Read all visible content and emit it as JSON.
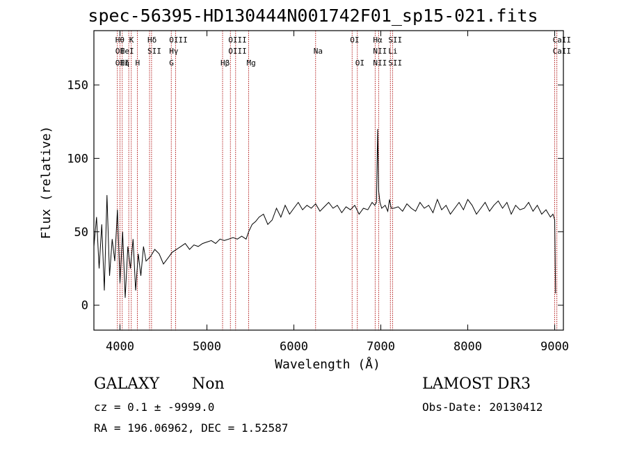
{
  "title": "spec-56395-HD130444N001742F01_sp15-021.fits",
  "info": {
    "galaxy_label": "GALAXY",
    "galaxy_value": "Non",
    "survey": "LAMOST DR3",
    "cz": "cz = 0.1 ± -9999.0",
    "obs_date": "Obs-Date: 20130412",
    "radec": "RA = 196.06962, DEC =    1.52587"
  },
  "chart_data": {
    "type": "line",
    "xlabel": "Wavelength (Å)",
    "ylabel": "Flux (relative)",
    "xlim": [
      3700,
      9100
    ],
    "ylim": [
      -17,
      187
    ],
    "xticks": [
      4000,
      5000,
      6000,
      7000,
      8000,
      9000
    ],
    "yticks": [
      0,
      50,
      100,
      150
    ],
    "line_color": "#000000",
    "marker_color": "#aa0000",
    "series": [
      {
        "x": [
          3700,
          3730,
          3760,
          3790,
          3820,
          3850,
          3880,
          3910,
          3940,
          3970,
          4000,
          4030,
          4060,
          4090,
          4120,
          4150,
          4180,
          4210,
          4240,
          4270,
          4300,
          4350,
          4400,
          4450,
          4500,
          4550,
          4600,
          4650,
          4700,
          4750,
          4800,
          4850,
          4900,
          4950,
          5000,
          5050,
          5100,
          5150,
          5200,
          5250,
          5300,
          5350,
          5400,
          5450,
          5480,
          5520,
          5560,
          5600,
          5650,
          5700,
          5750,
          5800,
          5850,
          5900,
          5950,
          6000,
          6050,
          6100,
          6150,
          6200,
          6250,
          6300,
          6350,
          6400,
          6450,
          6500,
          6550,
          6600,
          6650,
          6700,
          6750,
          6800,
          6850,
          6900,
          6930,
          6950,
          6963,
          6975,
          6990,
          7010,
          7050,
          7080,
          7100,
          7120,
          7150,
          7200,
          7250,
          7300,
          7350,
          7400,
          7450,
          7500,
          7550,
          7600,
          7650,
          7700,
          7750,
          7800,
          7850,
          7900,
          7950,
          8000,
          8050,
          8100,
          8150,
          8200,
          8250,
          8300,
          8350,
          8400,
          8450,
          8500,
          8550,
          8600,
          8650,
          8700,
          8750,
          8800,
          8850,
          8900,
          8950,
          8980,
          9000,
          9010
        ],
        "y": [
          40,
          60,
          25,
          55,
          10,
          75,
          20,
          45,
          30,
          65,
          15,
          50,
          5,
          40,
          25,
          45,
          10,
          35,
          20,
          40,
          30,
          33,
          38,
          35,
          28,
          32,
          36,
          38,
          40,
          42,
          38,
          41,
          40,
          42,
          43,
          44,
          42,
          45,
          44,
          45,
          46,
          45,
          47,
          45,
          50,
          55,
          57,
          60,
          62,
          55,
          58,
          66,
          60,
          68,
          62,
          66,
          70,
          65,
          68,
          66,
          69,
          64,
          67,
          70,
          66,
          68,
          63,
          67,
          65,
          68,
          62,
          66,
          65,
          70,
          68,
          70,
          120,
          78,
          70,
          66,
          68,
          64,
          72,
          66,
          66,
          67,
          64,
          69,
          66,
          64,
          70,
          66,
          68,
          63,
          72,
          65,
          68,
          62,
          66,
          70,
          65,
          72,
          68,
          62,
          66,
          70,
          64,
          68,
          71,
          66,
          70,
          62,
          68,
          65,
          66,
          70,
          64,
          68,
          62,
          65,
          60,
          62,
          58,
          8
        ]
      }
    ],
    "lines": [
      {
        "w": 3970,
        "top": "Hθ",
        "mid": "OI",
        "low": "OII"
      },
      {
        "w": 4000,
        "top": "",
        "mid": "",
        "low": ""
      },
      {
        "w": 4026,
        "top": "",
        "mid": "HeI",
        "low": "Hη"
      },
      {
        "w": 4101,
        "top": "",
        "mid": "",
        "low": ""
      },
      {
        "w": 4130,
        "top": "K",
        "mid": "",
        "low": ""
      },
      {
        "w": 4200,
        "top": "",
        "mid": "",
        "low": "H"
      },
      {
        "w": 4340,
        "top": "Hδ",
        "mid": "SII",
        "low": ""
      },
      {
        "w": 4363,
        "top": "",
        "mid": "",
        "low": ""
      },
      {
        "w": 4590,
        "top": "OIII",
        "mid": "Hγ",
        "low": "G"
      },
      {
        "w": 4640,
        "top": "",
        "mid": "",
        "low": ""
      },
      {
        "w": 5180,
        "top": "",
        "mid": "",
        "low": "Hβ"
      },
      {
        "w": 5270,
        "top": "OIII",
        "mid": "OIII",
        "low": ""
      },
      {
        "w": 5330,
        "top": "",
        "mid": "",
        "low": ""
      },
      {
        "w": 5480,
        "top": "",
        "mid": "",
        "low": "Mg"
      },
      {
        "w": 6250,
        "top": "",
        "mid": "Na",
        "low": ""
      },
      {
        "w": 6670,
        "top": "OI",
        "mid": "",
        "low": ""
      },
      {
        "w": 6730,
        "top": "",
        "mid": "",
        "low": "OI"
      },
      {
        "w": 6935,
        "top": "Hα",
        "mid": "NII",
        "low": "NII"
      },
      {
        "w": 6975,
        "top": "",
        "mid": "",
        "low": ""
      },
      {
        "w": 7110,
        "top": "SII",
        "mid": "Li",
        "low": "SII"
      },
      {
        "w": 7135,
        "top": "",
        "mid": "",
        "low": ""
      },
      {
        "w": 9000,
        "top": "CaII",
        "mid": "CaII",
        "low": ""
      },
      {
        "w": 9025,
        "top": "",
        "mid": "",
        "low": ""
      }
    ]
  }
}
